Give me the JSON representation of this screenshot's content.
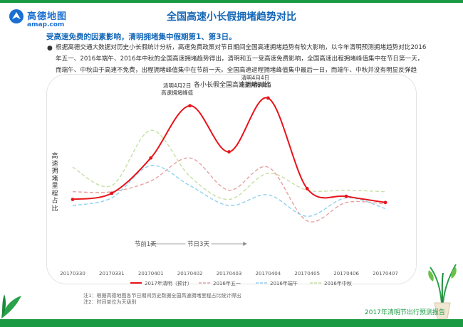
{
  "header": {
    "logo_name": "高德地图",
    "logo_url": "amap.com",
    "page_title": "全国高速小长假拥堵趋势对比"
  },
  "subtitle": "受高速免费的因素影响，清明拥堵集中假期第1、第3日。",
  "description": "根据高德交通大数据对历史小长假统计分析，高速免费政策对节日期间全国高速拥堵趋势有较大影响，以今年清明预测拥堵趋势对比2016年五一、2016年端午、2016年中秋的全国高速拥堵趋势得出，清明和五一受高速免费影响，全国高速出程拥堵峰值集中在节日第一天，而端午、中秋由于高速不免费，出程拥堵峰值集中在节前一天。全国高速返程拥堵峰值集中最后一日，而端午、中秋并没有明显反弹趋势。",
  "chart_data": {
    "type": "line",
    "title": "各小长假全国高速拥堵对比",
    "ylabel": "高速拥堵里程占比",
    "categories": [
      "20170330",
      "20170331",
      "20170401",
      "20170402",
      "20170403",
      "20170404",
      "20170405",
      "20170406",
      "20170407"
    ],
    "ylim": [
      0,
      100
    ],
    "grid": false,
    "legend": "bottom",
    "series": [
      {
        "name": "2017年清明（预计）",
        "color": "#e8141b",
        "values": [
          28,
          32,
          55,
          89,
          59,
          94,
          35,
          30,
          26
        ]
      },
      {
        "name": "2016年五一",
        "color": "#e8a0a0",
        "values": [
          33,
          33,
          40,
          55,
          34,
          49,
          14,
          26,
          25
        ]
      },
      {
        "name": "2016年端午",
        "color": "#8fd1f0",
        "values": [
          24,
          29,
          50,
          37,
          24,
          31,
          17,
          29,
          22
        ]
      },
      {
        "name": "2016年中秋",
        "color": "#c5e0a4",
        "values": [
          49,
          37,
          73,
          43,
          28,
          45,
          34,
          34,
          33
        ]
      }
    ],
    "annotations": [
      {
        "text_line1": "清明4月2日",
        "text_line2": "高速拥堵峰值"
      },
      {
        "text_line1": "清明4月4日",
        "text_line2": "高速拥堵峰值"
      }
    ],
    "markers": {
      "pre_holiday": "节前1天",
      "holiday": "节日3天"
    }
  },
  "notes": {
    "note1": "注1：根据高德地图各节日期间历史数据全国高速拥堵里程占比统计得出",
    "note2": "注2：时间单位为天级别"
  },
  "footer": {
    "report_title": "2017年清明节出行预测报告"
  },
  "colors": {
    "accent_green": "#1a9a43",
    "title_blue": "#1467b8"
  }
}
